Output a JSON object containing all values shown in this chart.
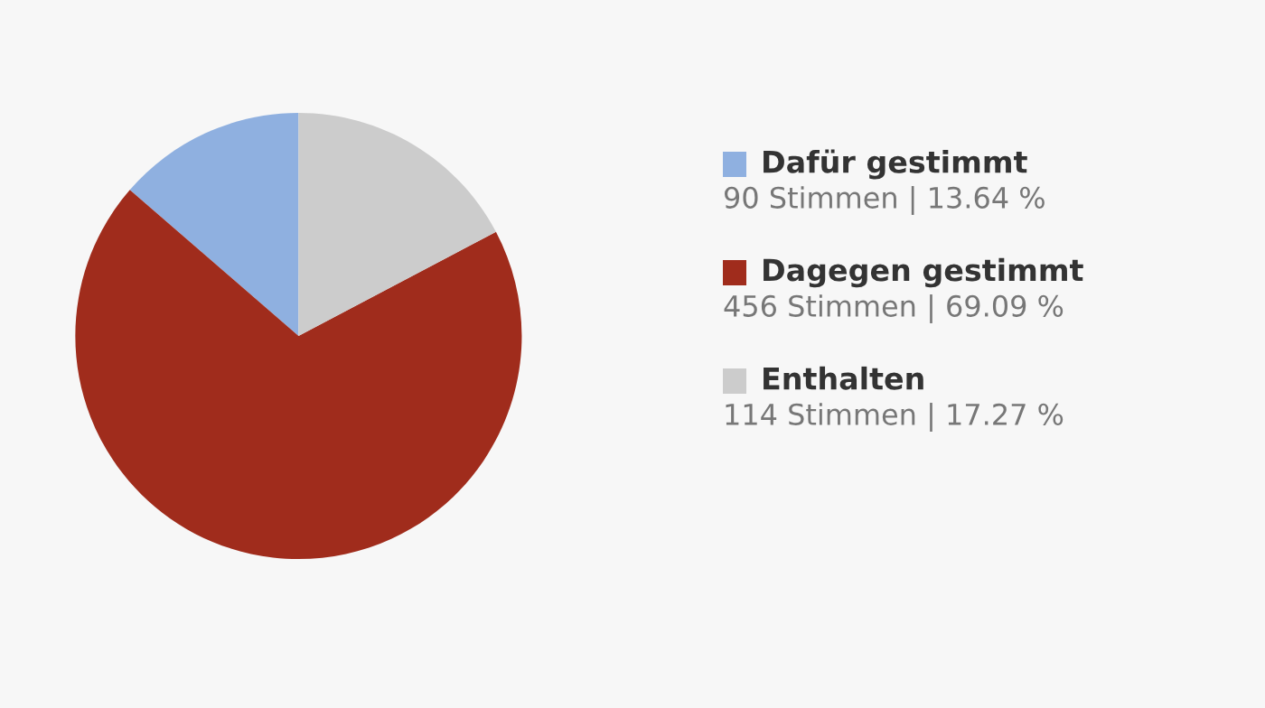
{
  "chart_data": {
    "type": "pie",
    "categories": [
      "Dafür gestimmt",
      "Dagegen gestimmt",
      "Enthalten"
    ],
    "values": [
      90,
      456,
      114
    ],
    "value_labels": [
      "90 Stimmen | 13.64 %",
      "456 Stimmen | 69.09 %",
      "114 Stimmen | 17.27 %"
    ],
    "colors": [
      "#8fb0e0",
      "#a02c1c",
      "#cccccc"
    ],
    "legend": "right"
  }
}
